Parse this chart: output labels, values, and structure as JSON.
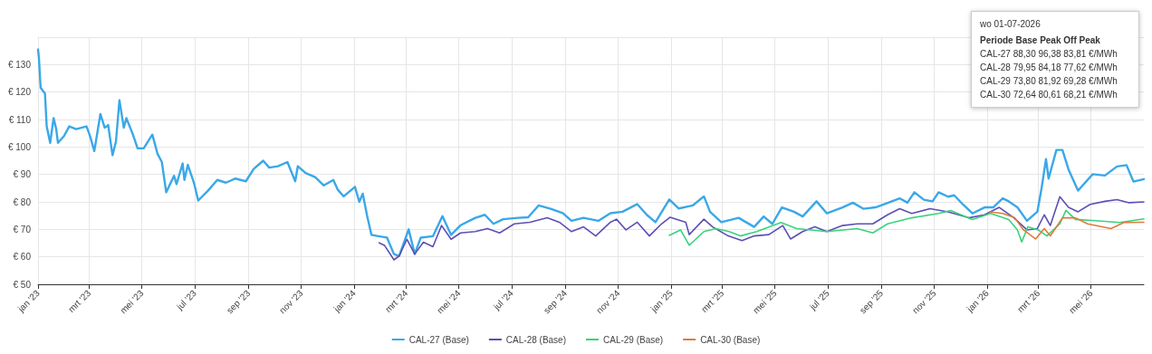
{
  "chart_data": {
    "type": "line",
    "xlim": [
      "2023-01-01",
      "2026-07-01"
    ],
    "xticks": [
      {
        "value": "2023-01-01",
        "label": "jan '23"
      },
      {
        "value": "2023-03-01",
        "label": "mrt '23"
      },
      {
        "value": "2023-05-01",
        "label": "mei '23"
      },
      {
        "value": "2023-07-01",
        "label": "jul '23"
      },
      {
        "value": "2023-09-01",
        "label": "sep '23"
      },
      {
        "value": "2023-11-01",
        "label": "nov '23"
      },
      {
        "value": "2024-01-01",
        "label": "jan '24"
      },
      {
        "value": "2024-03-01",
        "label": "mrt '24"
      },
      {
        "value": "2024-05-01",
        "label": "mei '24"
      },
      {
        "value": "2024-07-01",
        "label": "jul '24"
      },
      {
        "value": "2024-09-01",
        "label": "sep '24"
      },
      {
        "value": "2024-11-01",
        "label": "nov '24"
      },
      {
        "value": "2025-01-01",
        "label": "jan '25"
      },
      {
        "value": "2025-03-01",
        "label": "mrt '25"
      },
      {
        "value": "2025-05-01",
        "label": "mei '25"
      },
      {
        "value": "2025-07-01",
        "label": "jul '25"
      },
      {
        "value": "2025-09-01",
        "label": "sep '25"
      },
      {
        "value": "2025-11-01",
        "label": "nov '25"
      },
      {
        "value": "2026-01-01",
        "label": "jan '26"
      },
      {
        "value": "2026-03-01",
        "label": "mrt '26"
      },
      {
        "value": "2026-05-01",
        "label": "mei '26"
      }
    ],
    "ylim": [
      50,
      140
    ],
    "yticks": [
      {
        "value": 50,
        "label": "€ 50"
      },
      {
        "value": 60,
        "label": "€ 60"
      },
      {
        "value": 70,
        "label": "€ 70"
      },
      {
        "value": 80,
        "label": "€ 80"
      },
      {
        "value": 90,
        "label": "€ 90"
      },
      {
        "value": 100,
        "label": "€ 100"
      },
      {
        "value": 110,
        "label": "€ 110"
      },
      {
        "value": 120,
        "label": "€ 120"
      },
      {
        "value": 130,
        "label": "€ 130"
      },
      {
        "value": 140,
        "label": null
      }
    ],
    "grid": true,
    "legend": "bottom",
    "marker": "none",
    "line_style": "solid",
    "annotations": [
      "wo 01-07-2026",
      "Periode Base Peak Off Peak",
      "CAL-27 88,30 96,38 83,81 €/MWh",
      "CAL-28 79,95 84,18 77,62 €/MWh",
      "CAL-29 73,80 81,92 69,28 €/MWh",
      "CAL-30 72,64 80,61 68,21 €/MWh"
    ],
    "series": [
      {
        "name": "CAL-27 (Base)",
        "color": "#3aa8e8",
        "x": [
          "2023-01-01",
          "2023-01-02",
          "2023-01-04",
          "2023-01-09",
          "2023-01-11",
          "2023-01-15",
          "2023-01-19",
          "2023-01-22",
          "2023-01-24",
          "2023-01-31",
          "2023-02-06",
          "2023-02-14",
          "2023-02-26",
          "2023-03-02",
          "2023-03-07",
          "2023-03-14",
          "2023-03-19",
          "2023-03-23",
          "2023-03-28",
          "2023-04-01",
          "2023-04-05",
          "2023-04-10",
          "2023-04-13",
          "2023-04-20",
          "2023-04-26",
          "2023-05-03",
          "2023-05-13",
          "2023-05-19",
          "2023-05-24",
          "2023-05-29",
          "2023-06-07",
          "2023-06-10",
          "2023-06-17",
          "2023-06-19",
          "2023-06-23",
          "2023-06-30",
          "2023-07-05",
          "2023-07-16",
          "2023-07-27",
          "2023-08-06",
          "2023-08-17",
          "2023-08-29",
          "2023-09-07",
          "2023-09-18",
          "2023-09-25",
          "2023-10-05",
          "2023-10-16",
          "2023-10-25",
          "2023-10-28",
          "2023-11-06",
          "2023-11-17",
          "2023-11-27",
          "2023-12-08",
          "2023-12-13",
          "2023-12-20",
          "2024-01-02",
          "2024-01-07",
          "2024-01-11",
          "2024-01-16",
          "2024-01-21",
          "2024-01-29",
          "2024-02-08",
          "2024-02-16",
          "2024-02-22",
          "2024-03-04",
          "2024-03-11",
          "2024-03-18",
          "2024-04-01",
          "2024-04-12",
          "2024-04-22",
          "2024-05-03",
          "2024-05-20",
          "2024-05-31",
          "2024-06-10",
          "2024-06-21",
          "2024-07-08",
          "2024-07-20",
          "2024-08-01",
          "2024-08-15",
          "2024-08-29",
          "2024-09-08",
          "2024-09-22",
          "2024-10-09",
          "2024-10-23",
          "2024-11-06",
          "2024-11-23",
          "2024-12-04",
          "2024-12-14",
          "2024-12-30",
          "2025-01-10",
          "2025-01-26",
          "2025-02-08",
          "2025-02-15",
          "2025-02-28",
          "2025-03-20",
          "2025-04-07",
          "2025-04-18",
          "2025-04-28",
          "2025-05-09",
          "2025-05-23",
          "2025-06-02",
          "2025-06-18",
          "2025-06-30",
          "2025-07-18",
          "2025-07-30",
          "2025-08-11",
          "2025-08-25",
          "2025-09-04",
          "2025-09-22",
          "2025-10-01",
          "2025-10-09",
          "2025-10-20",
          "2025-10-30",
          "2025-11-06",
          "2025-11-17",
          "2025-11-24",
          "2025-12-04",
          "2025-12-15",
          "2025-12-29",
          "2026-01-08",
          "2026-01-19",
          "2026-01-26",
          "2026-02-05",
          "2026-02-16",
          "2026-02-28",
          "2026-03-05",
          "2026-03-10",
          "2026-03-13",
          "2026-03-22",
          "2026-03-29",
          "2026-04-05",
          "2026-04-16",
          "2026-05-03",
          "2026-05-17",
          "2026-05-31",
          "2026-06-11",
          "2026-06-19",
          "2026-07-01"
        ],
        "values": [
          135.5,
          132.5,
          121.5,
          119.5,
          107.5,
          101.5,
          110.5,
          106.5,
          101.5,
          104,
          107.5,
          106.5,
          107.5,
          104,
          98.5,
          112,
          107,
          108,
          97,
          102,
          117,
          107,
          110.5,
          105,
          99.5,
          99.5,
          104.5,
          97.5,
          94.5,
          83.5,
          89.5,
          86.5,
          94,
          88,
          93.5,
          87,
          80.5,
          84,
          88,
          87,
          88.5,
          87.5,
          92,
          95,
          92.5,
          93,
          94.5,
          87.5,
          93,
          90.5,
          89,
          86,
          88,
          84.5,
          82,
          85.5,
          80,
          83,
          75,
          68,
          67.5,
          67,
          61,
          60.3,
          70,
          61,
          67,
          67.5,
          74.8,
          68,
          71.5,
          74.2,
          75.3,
          72,
          73.7,
          74.2,
          74.4,
          78.7,
          77.5,
          75.9,
          73.1,
          74.2,
          73.1,
          75.9,
          76.4,
          79.2,
          75.3,
          72.6,
          80.9,
          77.6,
          78.7,
          82,
          76.4,
          72.6,
          74.2,
          70.9,
          74.7,
          72,
          78,
          76.4,
          74.7,
          80.2,
          75.8,
          78,
          79.7,
          77.5,
          78,
          79.1,
          81.3,
          79.7,
          83.5,
          80.8,
          80.2,
          83.5,
          81.9,
          82.4,
          79.1,
          75.8,
          78,
          78,
          81.3,
          80.2,
          78,
          73.1,
          76.4,
          85.2,
          95.6,
          88.5,
          98.9,
          98.9,
          91.8,
          84.1,
          90.1,
          89.6,
          92.9,
          93.4,
          87.4,
          88.3
        ]
      },
      {
        "name": "CAL-28 (Base)",
        "color": "#5b4fb5",
        "x": [
          "2024-01-30",
          "2024-02-05",
          "2024-02-16",
          "2024-02-22",
          "2024-03-02",
          "2024-03-11",
          "2024-03-21",
          "2024-04-01",
          "2024-04-11",
          "2024-04-22",
          "2024-05-03",
          "2024-05-20",
          "2024-06-03",
          "2024-06-17",
          "2024-07-04",
          "2024-07-22",
          "2024-08-11",
          "2024-08-25",
          "2024-09-08",
          "2024-09-22",
          "2024-10-06",
          "2024-10-23",
          "2024-10-30",
          "2024-11-10",
          "2024-11-23",
          "2024-12-07",
          "2024-12-21",
          "2024-12-31",
          "2025-01-18",
          "2025-01-22",
          "2025-02-08",
          "2025-02-18",
          "2025-03-08",
          "2025-03-24",
          "2025-04-07",
          "2025-04-24",
          "2025-05-10",
          "2025-05-19",
          "2025-06-02",
          "2025-06-16",
          "2025-06-30",
          "2025-07-18",
          "2025-08-04",
          "2025-08-22",
          "2025-09-08",
          "2025-09-22",
          "2025-10-06",
          "2025-10-27",
          "2025-11-17",
          "2025-12-11",
          "2025-12-29",
          "2026-01-15",
          "2026-02-01",
          "2026-02-16",
          "2026-02-28",
          "2026-03-08",
          "2026-03-15",
          "2026-03-26",
          "2026-04-05",
          "2026-04-16",
          "2026-04-30",
          "2026-05-17",
          "2026-05-31",
          "2026-06-14",
          "2026-07-01"
        ],
        "values": [
          65.1,
          64.2,
          58.9,
          60.3,
          66.4,
          61,
          65.3,
          63.7,
          71.4,
          66.4,
          68.7,
          69.2,
          70.3,
          68.7,
          72,
          72.6,
          74.2,
          72.6,
          69.2,
          70.9,
          67.6,
          72.6,
          73.7,
          69.8,
          72.6,
          67.6,
          72,
          74.4,
          72.6,
          68.1,
          73.7,
          70.9,
          67.6,
          65.9,
          67.6,
          68.1,
          71.4,
          66.5,
          69.2,
          70.9,
          69.2,
          71.4,
          72,
          72,
          75.3,
          77.5,
          75.8,
          77.5,
          76.4,
          74.2,
          75.3,
          78,
          74.2,
          69.8,
          70.3,
          75.3,
          71.4,
          81.9,
          78,
          76.4,
          79.1,
          80.2,
          80.8,
          79.7,
          80.0
        ]
      },
      {
        "name": "CAL-29 (Base)",
        "color": "#3ad27e",
        "x": [
          "2024-12-30",
          "2025-01-12",
          "2025-01-22",
          "2025-02-08",
          "2025-02-22",
          "2025-03-09",
          "2025-03-22",
          "2025-04-10",
          "2025-05-08",
          "2025-05-26",
          "2025-06-30",
          "2025-08-04",
          "2025-08-22",
          "2025-09-08",
          "2025-10-06",
          "2025-11-06",
          "2025-11-20",
          "2025-12-15",
          "2026-01-05",
          "2026-01-26",
          "2026-02-05",
          "2026-02-10",
          "2026-02-17",
          "2026-03-01",
          "2026-03-11",
          "2026-03-26",
          "2026-04-02",
          "2026-04-13",
          "2026-05-10",
          "2026-06-03",
          "2026-07-01"
        ],
        "values": [
          67.8,
          69.8,
          64.2,
          69.2,
          70.3,
          69.2,
          67.6,
          69.2,
          72.5,
          70.3,
          69.2,
          70.3,
          68.7,
          72,
          74.2,
          75.8,
          76.9,
          73.6,
          75.8,
          73.6,
          69.8,
          65.4,
          70.9,
          69.8,
          67.6,
          72,
          76.9,
          73.6,
          73.1,
          72.5,
          73.8
        ]
      },
      {
        "name": "CAL-30 (Base)",
        "color": "#e07a3c",
        "x": [
          "2026-01-04",
          "2026-01-19",
          "2026-02-02",
          "2026-02-12",
          "2026-02-26",
          "2026-03-08",
          "2026-03-15",
          "2026-03-29",
          "2026-04-13",
          "2026-04-27",
          "2026-05-24",
          "2026-06-08",
          "2026-07-01"
        ],
        "values": [
          76.4,
          75.8,
          74.2,
          69.8,
          66.5,
          70.3,
          67.6,
          74.2,
          74.2,
          72,
          70.3,
          72.5,
          72.6
        ]
      }
    ]
  }
}
